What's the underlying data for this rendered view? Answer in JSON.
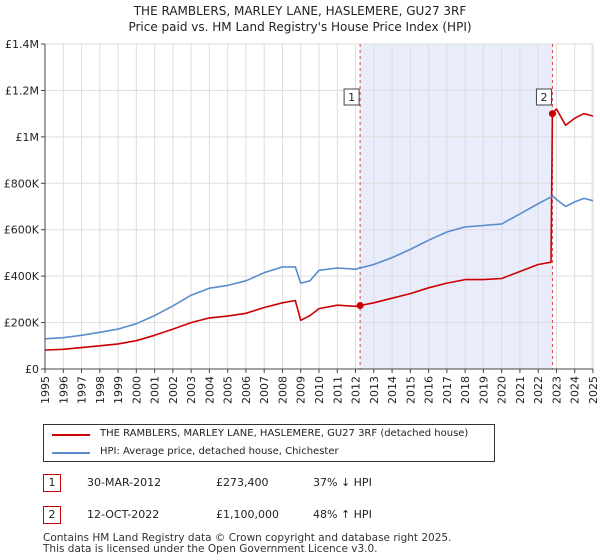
{
  "chart_data": {
    "type": "line",
    "title": "THE RAMBLERS, MARLEY LANE, HASLEMERE, GU27 3RF",
    "subtitle": "Price paid vs. HM Land Registry's House Price Index (HPI)",
    "xlabel": "",
    "ylabel": "",
    "xlim": [
      1995,
      2025
    ],
    "ylim": [
      0,
      1400000
    ],
    "grid": true,
    "x_ticks": [
      "1995",
      "1996",
      "1997",
      "1998",
      "1999",
      "2000",
      "2001",
      "2002",
      "2003",
      "2004",
      "2005",
      "2006",
      "2007",
      "2008",
      "2009",
      "2010",
      "2011",
      "2012",
      "2013",
      "2014",
      "2015",
      "2016",
      "2017",
      "2018",
      "2019",
      "2020",
      "2021",
      "2022",
      "2023",
      "2024",
      "2025"
    ],
    "y_ticks": [
      {
        "value": 0,
        "label": "£0"
      },
      {
        "value": 200000,
        "label": "£200K"
      },
      {
        "value": 400000,
        "label": "£400K"
      },
      {
        "value": 600000,
        "label": "£600K"
      },
      {
        "value": 800000,
        "label": "£800K"
      },
      {
        "value": 1000000,
        "label": "£1M"
      },
      {
        "value": 1200000,
        "label": "£1.2M"
      },
      {
        "value": 1400000,
        "label": "£1.4M"
      }
    ],
    "shaded_range": [
      2012.25,
      2022.78
    ],
    "series": [
      {
        "name": "THE RAMBLERS, MARLEY LANE, HASLEMERE, GU27 3RF (detached house)",
        "color": "#cc0000",
        "x": [
          1995,
          1996,
          1997,
          1998,
          1999,
          2000,
          2001,
          2002,
          2003,
          2004,
          2005,
          2006,
          2007,
          2008,
          2008.7,
          2009,
          2009.5,
          2010,
          2011,
          2012,
          2012.25,
          2013,
          2014,
          2015,
          2016,
          2017,
          2018,
          2019,
          2020,
          2021,
          2022,
          2022.7,
          2022.78,
          2023,
          2023.5,
          2024,
          2024.5,
          2025
        ],
        "y": [
          82000,
          85000,
          92000,
          100000,
          108000,
          122000,
          145000,
          172000,
          200000,
          220000,
          228000,
          240000,
          265000,
          285000,
          295000,
          210000,
          230000,
          260000,
          275000,
          270000,
          273400,
          285000,
          305000,
          325000,
          350000,
          370000,
          385000,
          385000,
          390000,
          420000,
          450000,
          460000,
          1100000,
          1120000,
          1050000,
          1080000,
          1100000,
          1090000
        ]
      },
      {
        "name": "HPI: Average price, detached house, Chichester",
        "color": "#5b8ccc",
        "x": [
          1995,
          1996,
          1997,
          1998,
          1999,
          2000,
          2001,
          2002,
          2003,
          2004,
          2005,
          2006,
          2007,
          2008,
          2008.7,
          2009,
          2009.5,
          2010,
          2011,
          2012,
          2013,
          2014,
          2015,
          2016,
          2017,
          2018,
          2019,
          2020,
          2021,
          2022,
          2022.8,
          2023,
          2023.5,
          2024,
          2024.5,
          2025
        ],
        "y": [
          130000,
          135000,
          145000,
          158000,
          172000,
          195000,
          230000,
          272000,
          318000,
          348000,
          360000,
          380000,
          415000,
          440000,
          440000,
          370000,
          380000,
          425000,
          435000,
          430000,
          450000,
          480000,
          515000,
          555000,
          590000,
          612000,
          618000,
          625000,
          668000,
          712000,
          745000,
          730000,
          700000,
          720000,
          735000,
          725000
        ]
      }
    ],
    "annotations": [
      {
        "label": "1",
        "x": 2012.25,
        "y": 273400
      },
      {
        "label": "2",
        "x": 2022.78,
        "y": 1100000
      }
    ]
  },
  "legend": {
    "property_label": "THE RAMBLERS, MARLEY LANE, HASLEMERE, GU27 3RF (detached house)",
    "property_color": "#cc0000",
    "hpi_label": "HPI: Average price, detached house, Chichester",
    "hpi_color": "#5b8ccc"
  },
  "sales": [
    {
      "num": "1",
      "date": "30-MAR-2012",
      "price": "£273,400",
      "hpi": "37% ↓ HPI"
    },
    {
      "num": "2",
      "date": "12-OCT-2022",
      "price": "£1,100,000",
      "hpi": "48% ↑ HPI"
    }
  ],
  "footer": {
    "line1": "Contains HM Land Registry data © Crown copyright and database right 2025.",
    "line2": "This data is licensed under the Open Government Licence v3.0."
  }
}
